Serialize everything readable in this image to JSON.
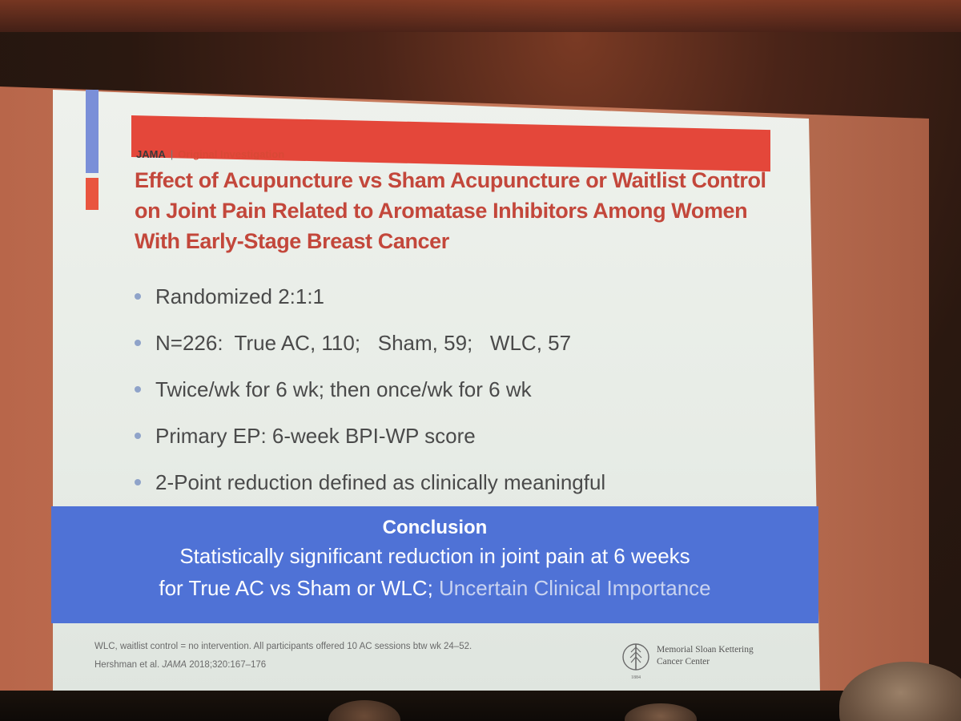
{
  "slide": {
    "journal": "JAMA",
    "separator": "|",
    "section": "Original Investigation",
    "title_lines": [
      "Effect of Acupuncture vs Sham Acupuncture or Waitlist Control",
      "on Joint Pain Related to Aromatase Inhibitors Among Women",
      "With Early-Stage Breast Cancer"
    ],
    "bullets": [
      "Randomized 2:1:1",
      "N=226:  True AC, 110;   Sham, 59;   WLC, 57",
      "Twice/wk for 6 wk; then once/wk for 6 wk",
      "Primary EP: 6-week BPI-WP score",
      "2-Point reduction defined as clinically meaningful"
    ],
    "conclusion": {
      "heading": "Conclusion",
      "line1": "Statistically significant reduction in joint pain at 6 weeks",
      "line2_main": "for True AC vs Sham or WLC; ",
      "line2_muted": "Uncertain Clinical Importance"
    },
    "footer": {
      "line1": "WLC, waitlist control = no intervention. All participants offered 10 AC sessions btw wk 24–52.",
      "line2_prefix": "Hershman et al. ",
      "line2_journal": "JAMA",
      "line2_suffix": " 2018;320:167–176"
    },
    "logo": {
      "line1": "Memorial Sloan Kettering",
      "line2": "Cancer Center",
      "year": "1884"
    }
  },
  "colors": {
    "accent_red": "#e4473a",
    "title_red": "#c3473b",
    "conclusion_blue": "#4f72d6",
    "side_blue": "#7a8fd8"
  }
}
